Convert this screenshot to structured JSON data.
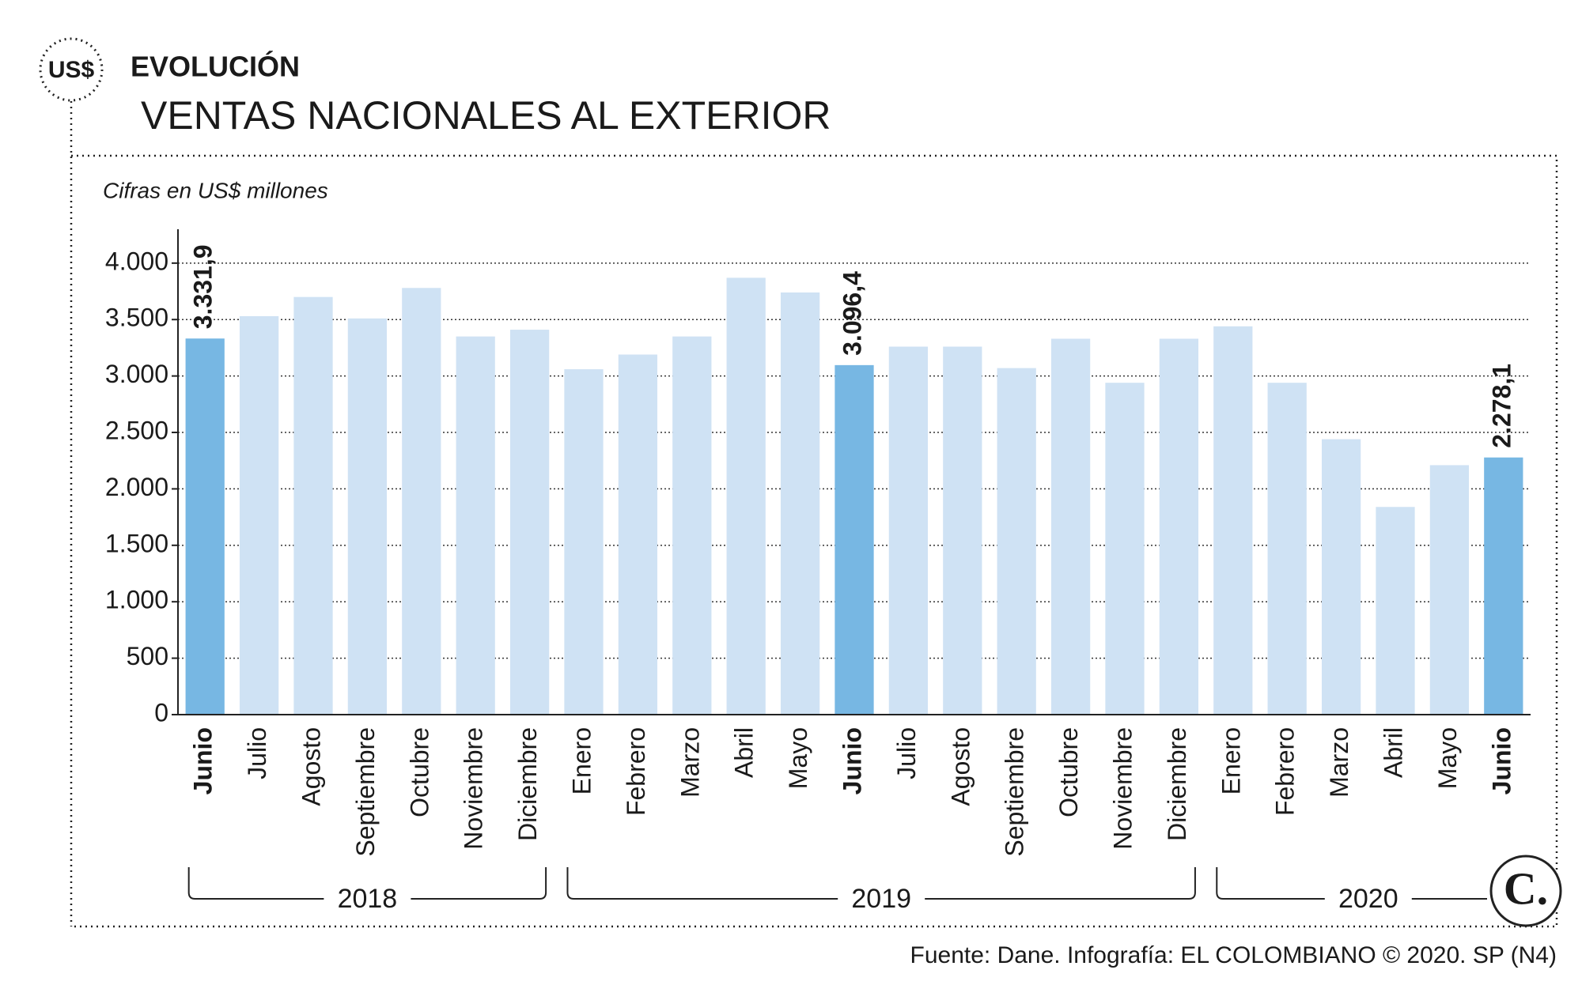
{
  "header": {
    "icon": "US$",
    "kicker": "EVOLUCIÓN",
    "title": "VENTAS NACIONALES AL EXTERIOR"
  },
  "chart_data": {
    "type": "bar",
    "subtitle": "Cifras en US$ millones",
    "groups": [
      {
        "label": "2018",
        "categories": [
          "Junio",
          "Julio",
          "Agosto",
          "Septiembre",
          "Octubre",
          "Noviembre",
          "Diciembre"
        ]
      },
      {
        "label": "2019",
        "categories": [
          "Enero",
          "Febrero",
          "Marzo",
          "Abril",
          "Mayo",
          "Junio",
          "Julio",
          "Agosto",
          "Septiembre",
          "Octubre",
          "Noviembre",
          "Diciembre"
        ]
      },
      {
        "label": "2020",
        "categories": [
          "Enero",
          "Febrero",
          "Marzo",
          "Abril",
          "Mayo",
          "Junio"
        ]
      }
    ],
    "values": [
      3331.9,
      3530,
      3700,
      3510,
      3780,
      3350,
      3410,
      3060,
      3190,
      3350,
      3870,
      3740,
      3096.4,
      3260,
      3260,
      3070,
      3330,
      2940,
      3330,
      3440,
      2940,
      2440,
      1840,
      2210,
      2278.1
    ],
    "value_labels": [
      "3.331,9",
      null,
      null,
      null,
      null,
      null,
      null,
      null,
      null,
      null,
      null,
      null,
      "3.096,4",
      null,
      null,
      null,
      null,
      null,
      null,
      null,
      null,
      null,
      null,
      null,
      "2.278,1"
    ],
    "colors": [
      "#77b7e3",
      "#cfe2f4",
      "#cfe2f4",
      "#cfe2f4",
      "#cfe2f4",
      "#cfe2f4",
      "#cfe2f4",
      "#cfe2f4",
      "#cfe2f4",
      "#cfe2f4",
      "#cfe2f4",
      "#cfe2f4",
      "#77b7e3",
      "#cfe2f4",
      "#cfe2f4",
      "#cfe2f4",
      "#cfe2f4",
      "#cfe2f4",
      "#cfe2f4",
      "#cfe2f4",
      "#cfe2f4",
      "#cfe2f4",
      "#cfe2f4",
      "#cfe2f4",
      "#77b7e3"
    ],
    "ylim": [
      0,
      4300
    ],
    "yticks": [
      0,
      500,
      {
        "value": 1000,
        "label": "1.000"
      },
      {
        "value": 1500,
        "label": "1.500"
      },
      {
        "value": 2000,
        "label": "2.000"
      },
      {
        "value": 2500,
        "label": "2.500"
      },
      {
        "value": 3000,
        "label": "3.000"
      },
      {
        "value": 3500,
        "label": "3.500"
      },
      {
        "value": 4000,
        "label": "4.000"
      }
    ],
    "grid": true
  },
  "footer": {
    "source": "Fuente: Dane. Infografía: EL COLOMBIANO © 2020. SP (N4)",
    "logo": "C."
  }
}
